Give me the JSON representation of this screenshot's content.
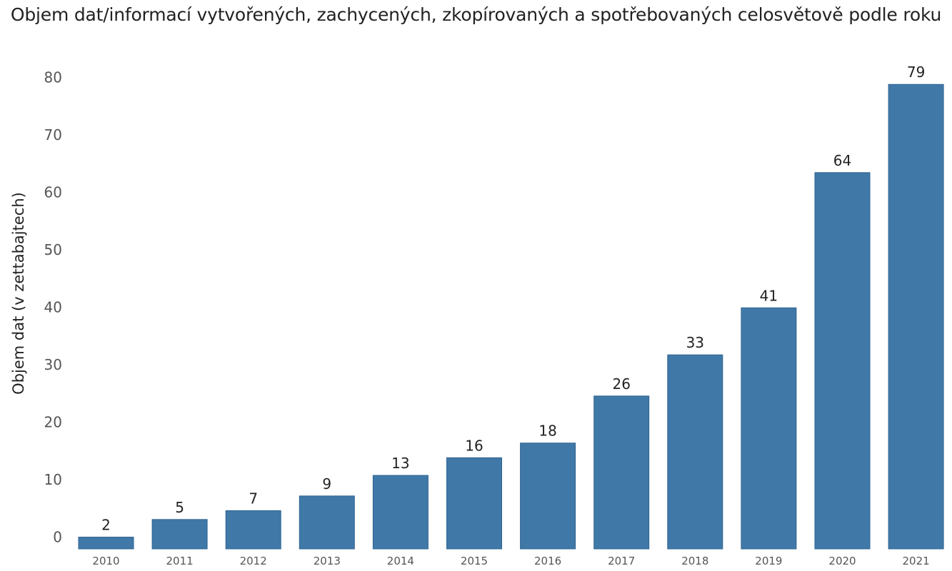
{
  "chart_data": {
    "type": "bar",
    "title": "Objem dat/informací vytvořených, zachycených, zkopírovaných a spotřebovaných celosvětově podle roku",
    "xlabel": "",
    "ylabel": "Objem dat (v zettabajtech)",
    "categories": [
      "2010",
      "2011",
      "2012",
      "2013",
      "2014",
      "2015",
      "2016",
      "2017",
      "2018",
      "2019",
      "2020",
      "2021"
    ],
    "values": [
      2,
      5,
      6.5,
      9,
      12.5,
      15.5,
      18,
      26,
      33,
      41,
      64,
      79
    ],
    "data_labels": [
      "2",
      "5",
      "7",
      "9",
      "13",
      "16",
      "18",
      "26",
      "33",
      "41",
      "64",
      "79"
    ],
    "yticks": [
      0,
      10,
      20,
      30,
      40,
      50,
      60,
      70,
      80
    ],
    "ylim": [
      0,
      86
    ],
    "grid": false,
    "bar_color": "#4079a8"
  }
}
